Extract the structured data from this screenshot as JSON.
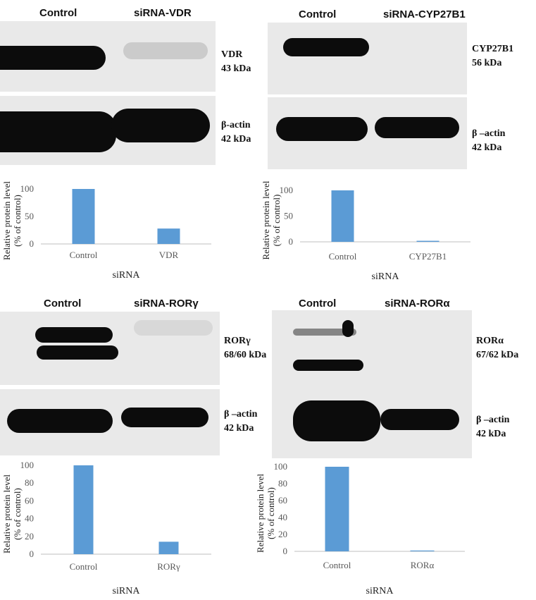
{
  "panels": [
    {
      "id": "vdr",
      "lane_labels": [
        "Control",
        "siRNA-VDR"
      ],
      "target": {
        "name": "VDR",
        "size": "43 kDa"
      },
      "loading": {
        "name": "β-actin",
        "size": "42 kDa"
      }
    },
    {
      "id": "cyp",
      "lane_labels": [
        "Control",
        "siRNA-CYP27B1"
      ],
      "target": {
        "name": "CYP27B1",
        "size": "56 kDa"
      },
      "loading": {
        "name": "β –actin",
        "size": "42 kDa"
      }
    },
    {
      "id": "rorg",
      "lane_labels": [
        "Control",
        "siRNA-RORγ"
      ],
      "target": {
        "name": "RORγ",
        "size": "68/60 kDa"
      },
      "loading": {
        "name": "β –actin",
        "size": "42 kDa"
      }
    },
    {
      "id": "rora",
      "lane_labels": [
        "Control",
        "siRNA-RORα"
      ],
      "target": {
        "name": "RORα",
        "size": "67/62 kDa"
      },
      "loading": {
        "name": "β –actin",
        "size": "42 kDa"
      }
    }
  ],
  "colors": {
    "bar": "#5b9bd5",
    "axis": "#bfbfbf",
    "tick_text": "#595959"
  },
  "chart_data": [
    {
      "type": "bar",
      "categories": [
        "Control",
        "VDR"
      ],
      "values": [
        100,
        28
      ],
      "yticks": [
        0,
        50,
        100
      ],
      "ylim": [
        0,
        100
      ],
      "ylabel": "Relative protein level (% of control)",
      "xlabel": "siRNA"
    },
    {
      "type": "bar",
      "categories": [
        "Control",
        "CYP27B1"
      ],
      "values": [
        100,
        2
      ],
      "yticks": [
        0,
        50,
        100
      ],
      "ylim": [
        0,
        100
      ],
      "ylabel": "Relative protein level (% of control)",
      "xlabel": "siRNA"
    },
    {
      "type": "bar",
      "categories": [
        "Control",
        "RORγ"
      ],
      "values": [
        100,
        14
      ],
      "yticks": [
        0,
        20,
        40,
        60,
        80,
        100
      ],
      "ylim": [
        0,
        100
      ],
      "ylabel": "Relative protein level (% of control)",
      "xlabel": "siRNA"
    },
    {
      "type": "bar",
      "categories": [
        "Control",
        "RORα"
      ],
      "values": [
        100,
        1
      ],
      "yticks": [
        0,
        20,
        40,
        60,
        80,
        100
      ],
      "ylim": [
        0,
        100
      ],
      "ylabel": "Relative protein level (% of control)",
      "xlabel": "siRNA"
    }
  ]
}
